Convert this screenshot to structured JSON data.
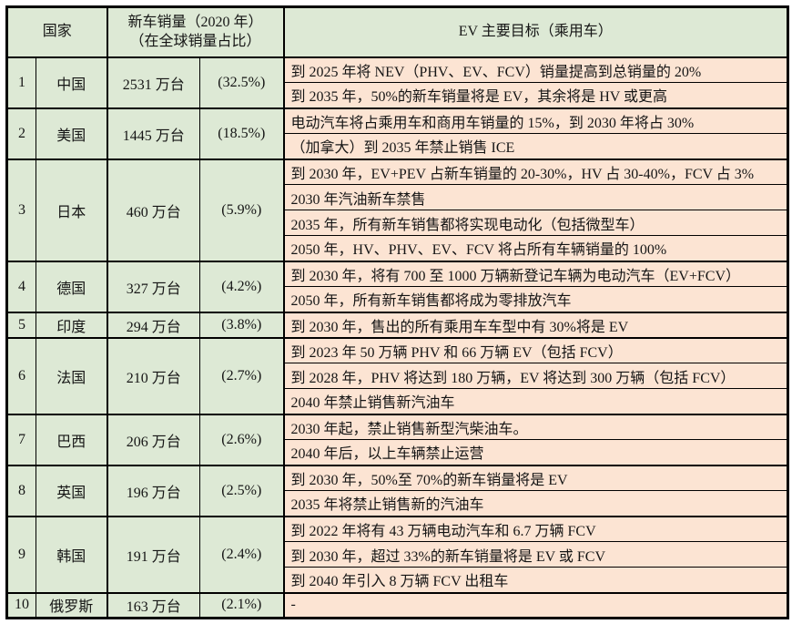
{
  "colors": {
    "cell_green": "#dde9d5",
    "cell_salmon": "#fce4d3",
    "border": "#000000",
    "text": "#151515"
  },
  "table": {
    "header": {
      "country": "国家",
      "sales_line1": "新车销量（2020 年）",
      "sales_line2": "（在全球销量占比）",
      "targets": "EV 主要目标（乘用车）"
    },
    "rows": [
      {
        "rank": "1",
        "country": "中国",
        "sales": "2531 万台",
        "share": "(32.5%)",
        "targets": [
          "到 2025 年将 NEV（PHV、EV、FCV）销量提高到总销量的 20%",
          "到 2035 年，50%的新车销量将是 EV，其余将是 HV 或更高"
        ]
      },
      {
        "rank": "2",
        "country": "美国",
        "sales": "1445 万台",
        "share": "(18.5%)",
        "targets": [
          "电动汽车将占乘用车和商用车销量的 15%，到 2030 年将占 30%",
          "（加拿大）到 2035 年禁止销售 ICE"
        ]
      },
      {
        "rank": "3",
        "country": "日本",
        "sales": "460 万台",
        "share": "(5.9%)",
        "targets": [
          "到 2030 年，EV+PEV 占新车销量的 20-30%，HV 占 30-40%，FCV 占 3%",
          "2030 年汽油新车禁售",
          "2035 年，所有新车销售都将实现电动化（包括微型车）",
          "2050 年，HV、PHV、EV、FCV 将占所有车辆销量的 100%"
        ]
      },
      {
        "rank": "4",
        "country": "德国",
        "sales": "327 万台",
        "share": "(4.2%)",
        "targets": [
          "到 2030 年，将有 700 至 1000 万辆新登记车辆为电动汽车（EV+FCV）",
          "2050 年，所有新车销售都将成为零排放汽车"
        ]
      },
      {
        "rank": "5",
        "country": "印度",
        "sales": "294 万台",
        "share": "(3.8%)",
        "targets": [
          "到 2030 年，售出的所有乘用车车型中有 30%将是 EV"
        ]
      },
      {
        "rank": "6",
        "country": "法国",
        "sales": "210 万台",
        "share": "(2.7%)",
        "targets": [
          "到 2023 年 50 万辆 PHV 和 66 万辆 EV（包括 FCV）",
          "到 2028 年，PHV 将达到 180 万辆，EV 将达到 300 万辆（包括 FCV）",
          "2040 年禁止销售新汽油车"
        ]
      },
      {
        "rank": "7",
        "country": "巴西",
        "sales": "206 万台",
        "share": "(2.6%)",
        "targets": [
          "2030 年起，禁止销售新型汽柴油车。",
          "2040 年后，以上车辆禁止运营"
        ]
      },
      {
        "rank": "8",
        "country": "英国",
        "sales": "196 万台",
        "share": "(2.5%)",
        "targets": [
          "到 2030 年，50%至 70%的新车销量将是 EV",
          "2035 年将禁止销售新的汽油车"
        ]
      },
      {
        "rank": "9",
        "country": "韩国",
        "sales": "191 万台",
        "share": "(2.4%)",
        "targets": [
          "到 2022 年将有 43 万辆电动汽车和 6.7 万辆 FCV",
          "到 2030 年，超过 33%的新车销量将是 EV 或 FCV",
          "到 2040 年引入 8 万辆 FCV 出租车"
        ]
      },
      {
        "rank": "10",
        "country": "俄罗斯",
        "sales": "163 万台",
        "share": "(2.1%)",
        "targets": [
          "-"
        ]
      }
    ]
  }
}
